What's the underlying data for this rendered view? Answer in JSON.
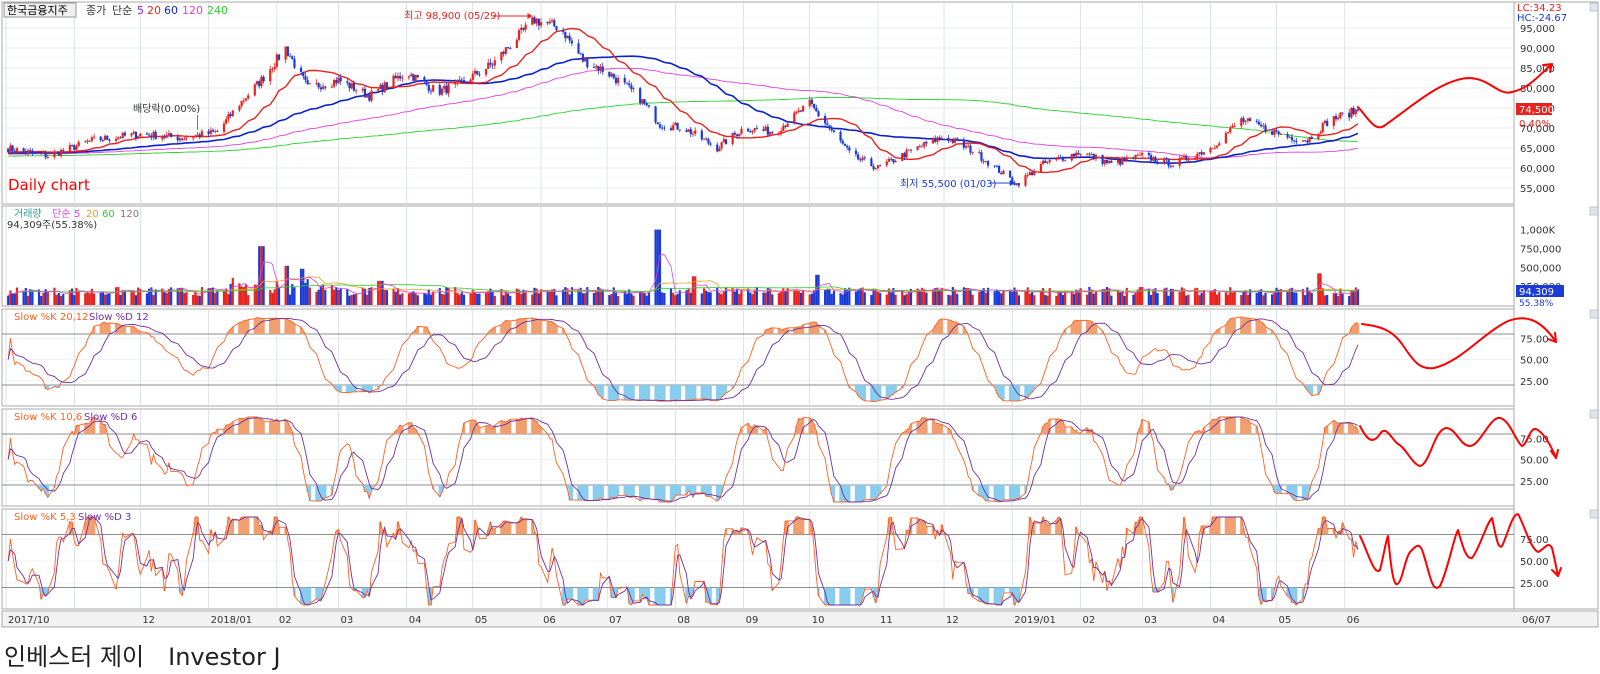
{
  "header": {
    "stock_name": "한국금융지주",
    "price_legend": [
      "종가",
      "단순",
      "5",
      "20",
      "60",
      "120",
      "240"
    ],
    "lc": "LC:34.23",
    "hc": "HC:-24.67",
    "high_label": "최고 98,900 (05/29)",
    "low_label": "최저 55,500 (01/03)",
    "dividend_label": "배당락(0.00%)",
    "daily_chart": "Daily chart",
    "price_badge": "74,500",
    "pct_badge": "0.40%"
  },
  "colors": {
    "up": "#e8231e",
    "down": "#1a3bd6",
    "ma5": "#8a2be2",
    "ma20": "#e8231e",
    "ma60": "#0b22c8",
    "ma120": "#e040e0",
    "ma240": "#2bd12b",
    "stoch_k": "#ff6020",
    "stoch_d": "#7030a0",
    "annot": "#ff0000"
  },
  "volume": {
    "legend": [
      "거래량",
      "단순",
      "5",
      "20",
      "60",
      "120"
    ],
    "info": "94,309주(55.38%)",
    "badge": "94,309",
    "badge_pct": "55.38%"
  },
  "stoch": [
    {
      "k_label": "Slow %K 20,12",
      "d_label": "Slow %D 12"
    },
    {
      "k_label": "Slow %K 10,6",
      "d_label": "Slow %D 6"
    },
    {
      "k_label": "Slow %K 5,3",
      "d_label": "Slow %D 3"
    }
  ],
  "xaxis": {
    "labels": [
      "2017/10",
      "12",
      "2018/01",
      "02",
      "03",
      "04",
      "05",
      "06",
      "07",
      "08",
      "09",
      "10",
      "11",
      "12",
      "2019/01",
      "02",
      "03",
      "04",
      "05",
      "06",
      "06/07"
    ]
  },
  "caption": [
    "인베스터 제이",
    "Investor J"
  ],
  "chart_data": {
    "type": "candlestick",
    "price_axis": {
      "ticks": [
        "95,000",
        "90,000",
        "85,000",
        "80,000",
        "75,000",
        "70,000",
        "65,000",
        "60,000",
        "55,000"
      ],
      "ylim": [
        52000,
        100000
      ]
    },
    "volume_axis": {
      "ticks": [
        "1,000K",
        "750,000",
        "500,000",
        "250,000"
      ],
      "ylim": [
        0,
        1100000
      ]
    },
    "stoch_axis": {
      "ticks": [
        "75.00",
        "50.00",
        "25.00"
      ],
      "ylim": [
        0,
        100
      ],
      "bands": [
        80,
        20
      ]
    },
    "price_anchors": [
      [
        "2017-10-01",
        65000
      ],
      [
        "2017-10-20",
        63000
      ],
      [
        "2017-11-10",
        67000
      ],
      [
        "2017-12-01",
        68500
      ],
      [
        "2017-12-20",
        67500
      ],
      [
        "2018-01-05",
        69000
      ],
      [
        "2018-01-15",
        76000
      ],
      [
        "2018-01-25",
        82000
      ],
      [
        "2018-02-05",
        90000
      ],
      [
        "2018-02-15",
        80000
      ],
      [
        "2018-03-01",
        82000
      ],
      [
        "2018-03-15",
        78000
      ],
      [
        "2018-04-01",
        84000
      ],
      [
        "2018-04-15",
        79000
      ],
      [
        "2018-04-25",
        81000
      ],
      [
        "2018-05-10",
        86000
      ],
      [
        "2018-05-20",
        92000
      ],
      [
        "2018-05-29",
        97000
      ],
      [
        "2018-06-10",
        95000
      ],
      [
        "2018-06-20",
        87000
      ],
      [
        "2018-07-01",
        84000
      ],
      [
        "2018-07-15",
        78000
      ],
      [
        "2018-07-25",
        71000
      ],
      [
        "2018-08-05",
        70000
      ],
      [
        "2018-08-20",
        65000
      ],
      [
        "2018-09-01",
        70000
      ],
      [
        "2018-09-15",
        69000
      ],
      [
        "2018-10-01",
        76000
      ],
      [
        "2018-10-10",
        70000
      ],
      [
        "2018-10-20",
        63000
      ],
      [
        "2018-11-01",
        60000
      ],
      [
        "2018-11-15",
        64000
      ],
      [
        "2018-12-01",
        68000
      ],
      [
        "2018-12-15",
        64000
      ],
      [
        "2019-01-03",
        56000
      ],
      [
        "2019-01-15",
        61000
      ],
      [
        "2019-02-01",
        64000
      ],
      [
        "2019-02-15",
        61000
      ],
      [
        "2019-03-01",
        63000
      ],
      [
        "2019-03-15",
        61000
      ],
      [
        "2019-04-01",
        65000
      ],
      [
        "2019-04-15",
        72000
      ],
      [
        "2019-04-25",
        70000
      ],
      [
        "2019-05-05",
        68000
      ],
      [
        "2019-05-15",
        67000
      ],
      [
        "2019-05-25",
        72000
      ],
      [
        "2019-06-07",
        74500
      ]
    ],
    "volume_spikes": [
      [
        "2018-01-25",
        780000
      ],
      [
        "2018-02-05",
        520000
      ],
      [
        "2018-02-12",
        480000
      ],
      [
        "2018-07-24",
        1000000
      ],
      [
        "2018-08-10",
        380000
      ],
      [
        "2018-10-05",
        400000
      ],
      [
        "2019-05-20",
        420000
      ],
      [
        "2018-03-20",
        320000
      ]
    ]
  }
}
